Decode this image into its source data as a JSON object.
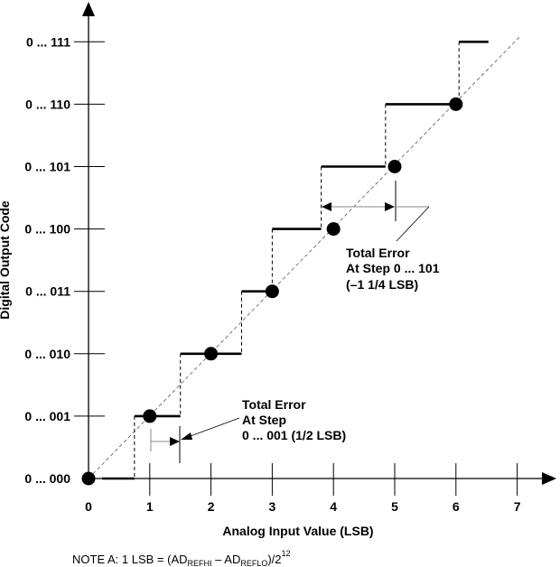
{
  "y_axis": {
    "label": "Digital Output Code",
    "ticks": [
      "0 ... 000",
      "0 ... 001",
      "0 ... 010",
      "0 ... 011",
      "0 ... 100",
      "0 ... 101",
      "0 ... 110",
      "0 ... 111"
    ]
  },
  "x_axis": {
    "label": "Analog Input Value (LSB)",
    "ticks": [
      "0",
      "1",
      "2",
      "3",
      "4",
      "5",
      "6",
      "7"
    ]
  },
  "transfer": {
    "start": 0.22,
    "transitions": [
      0.75,
      1.5,
      2.5,
      3.0,
      3.8,
      4.85,
      6.05
    ],
    "end": 6.53,
    "ideal_points": [
      0,
      1,
      2,
      3,
      4,
      5,
      6
    ]
  },
  "annotations": {
    "a1": {
      "line1": "Total Error",
      "line2": "At Step",
      "line3": "0 ... 001 (1/2 LSB)"
    },
    "a2": {
      "line1": "Total Error",
      "line2": "At Step 0 ... 101",
      "line3": "(–1 1/4 LSB)"
    }
  },
  "note": {
    "prefix": "NOTE A:  1 LSB = (AD",
    "sub1": "REFHI",
    "mid": " – AD",
    "sub2": "REFLO",
    "tail": ")/2",
    "sup": "12"
  }
}
